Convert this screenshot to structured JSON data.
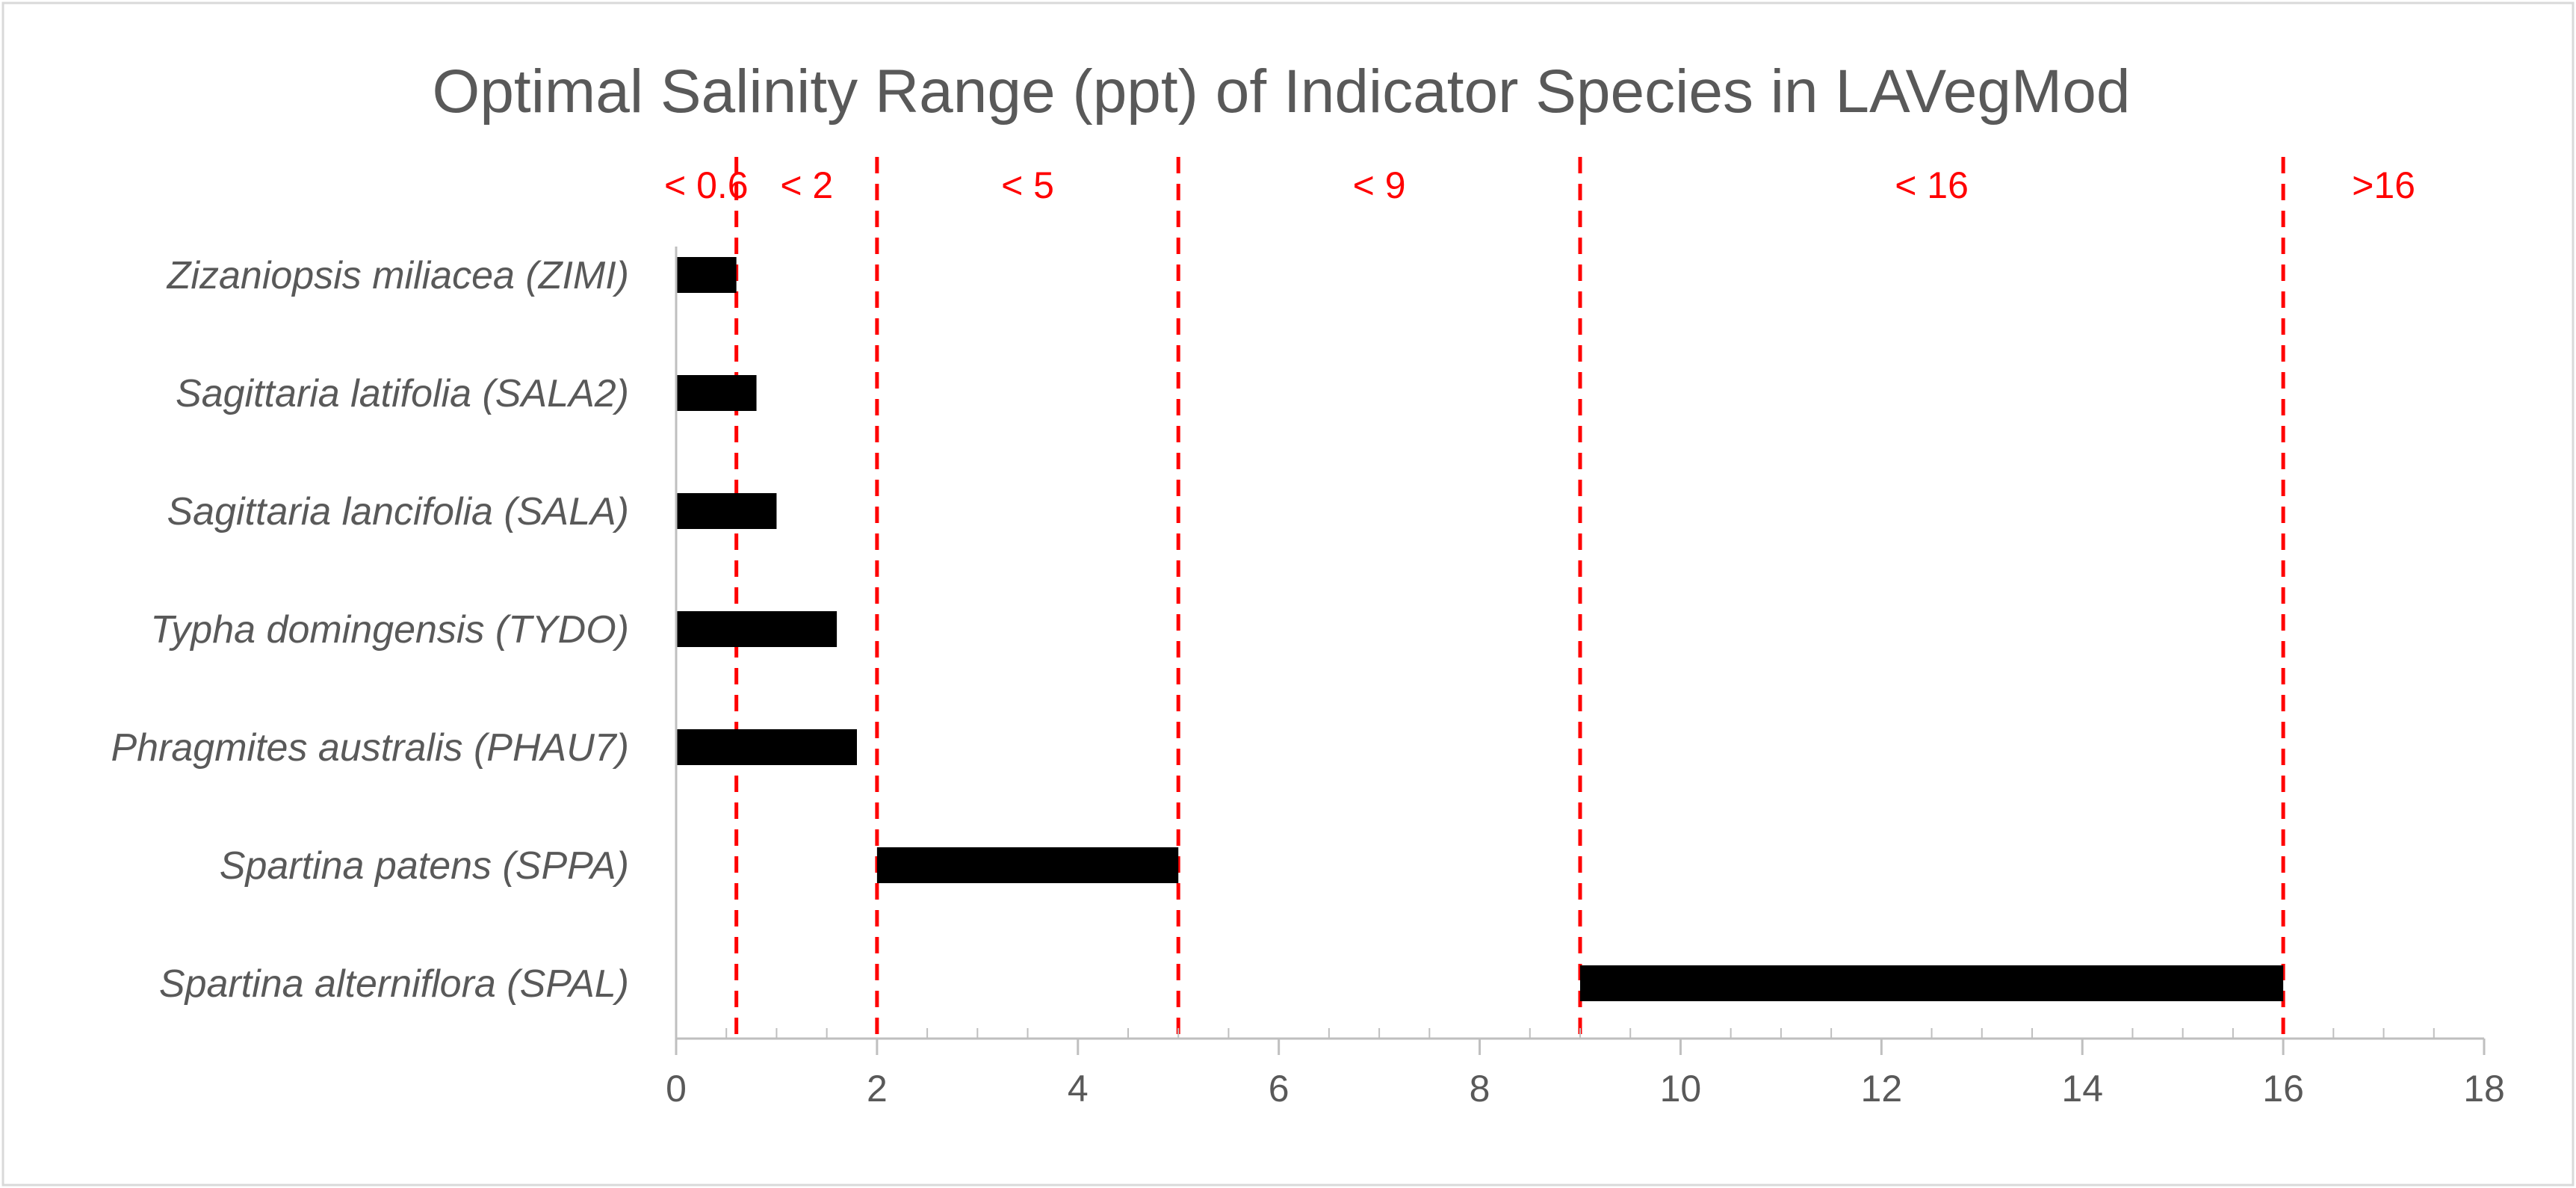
{
  "chart_data": {
    "type": "bar",
    "orientation": "horizontal",
    "title": "Optimal Salinity Range (ppt) of Indicator Species in LAVegMod",
    "xlabel": "",
    "ylabel": "",
    "xlim": [
      0,
      18
    ],
    "xticks": [
      0,
      2,
      4,
      6,
      8,
      10,
      12,
      14,
      16,
      18
    ],
    "xtick_labels": [
      "0",
      "2",
      "4",
      "6",
      "8",
      "10",
      "12",
      "14",
      "16",
      "18"
    ],
    "minor_tick_step": 0.5,
    "categories": [
      "Zizaniopsis miliacea (ZIMI)",
      "Sagittaria latifolia (SALA2)",
      "Sagittaria lancifolia (SALA)",
      "Typha domingensis (TYDO)",
      "Phragmites australis (PHAU7)",
      "Spartina patens (SPPA)",
      "Spartina alterniflora (SPAL)"
    ],
    "ranges": [
      [
        0,
        0.6
      ],
      [
        0,
        0.8
      ],
      [
        0,
        1.0
      ],
      [
        0,
        1.6
      ],
      [
        0,
        1.8
      ],
      [
        2,
        5
      ],
      [
        9,
        16
      ]
    ],
    "thresholds": [
      0.6,
      2,
      5,
      9,
      16
    ],
    "zones": [
      {
        "label": "< 0.6",
        "from": 0,
        "to": 0.6
      },
      {
        "label": "< 2",
        "from": 0.6,
        "to": 2
      },
      {
        "label": "< 5",
        "from": 2,
        "to": 5
      },
      {
        "label": "< 9",
        "from": 5,
        "to": 9
      },
      {
        "label": "< 16",
        "from": 9,
        "to": 16
      },
      {
        "label": ">16",
        "from": 16,
        "to": 18
      }
    ],
    "colors": {
      "bar": "#000000",
      "threshold": "#ff0000",
      "text": "#595959",
      "axis": "#bfbfbf",
      "frame": "#d9d9d9"
    },
    "grid": false,
    "legend": "none"
  }
}
